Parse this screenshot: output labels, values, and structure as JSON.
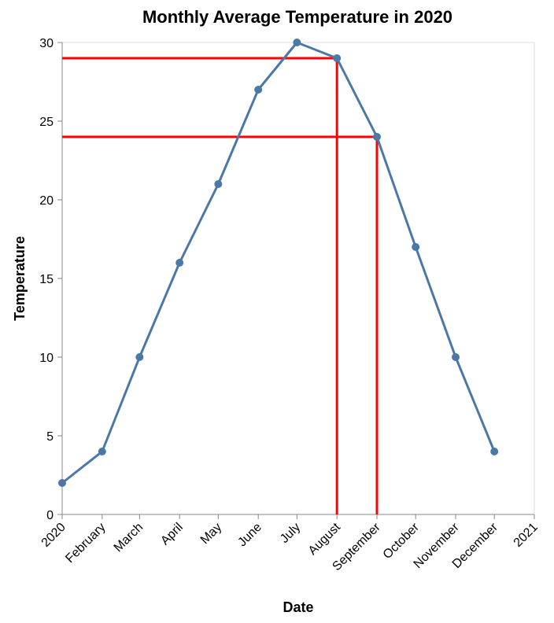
{
  "chart_data": {
    "type": "line",
    "title": "Monthly Average Temperature in 2020",
    "xlabel": "Date",
    "ylabel": "Temperature",
    "ylim": [
      0,
      30
    ],
    "yticks": [
      0,
      5,
      10,
      15,
      20,
      25,
      30
    ],
    "xlim": [
      "2020-01-01",
      "2021-01-01"
    ],
    "xtick_labels": [
      "2020",
      "February",
      "March",
      "April",
      "May",
      "June",
      "July",
      "August",
      "September",
      "October",
      "November",
      "December",
      "2021"
    ],
    "x": [
      "2020-01-01",
      "2020-02-01",
      "2020-03-01",
      "2020-04-01",
      "2020-05-01",
      "2020-06-01",
      "2020-07-01",
      "2020-08-01",
      "2020-09-01",
      "2020-10-01",
      "2020-11-01",
      "2020-12-01"
    ],
    "series": [
      {
        "values": [
          2,
          4,
          10,
          16,
          21,
          27,
          30,
          29,
          24,
          17,
          10,
          4
        ]
      }
    ],
    "highlights": [
      {
        "x": "2020-08-01",
        "y": 29
      },
      {
        "x": "2020-09-01",
        "y": 24
      }
    ],
    "grid": false,
    "colors": {
      "line": "#4c78a8",
      "highlight": "#ff0000",
      "axis": "#888888",
      "frame": "#dddddd"
    }
  }
}
